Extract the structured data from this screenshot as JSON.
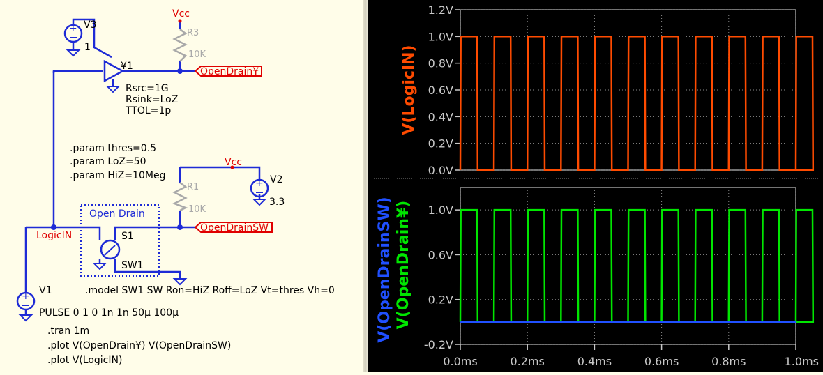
{
  "schematic": {
    "vcc_top": "Vcc",
    "vcc_mid": "Vcc",
    "v3": {
      "name": "V3",
      "value": "1"
    },
    "r3": {
      "name": "R3",
      "value": "10K"
    },
    "u1": {
      "name": "¥1",
      "params": [
        "Rsrc=1G",
        "Rsink=LoZ",
        "TTOL=1p"
      ]
    },
    "label_opendrain": "OpenDrain¥",
    "label_opendrainsw": "OpenDrainSW",
    "label_logicin": "LogicIN",
    "params": [
      ".param thres=0.5",
      ".param LoZ=50",
      ".param HiZ=10Meg"
    ],
    "r1": {
      "name": "R1",
      "value": "10K"
    },
    "v2": {
      "name": "V2",
      "value": "3.3"
    },
    "box_title": "Open Drain",
    "s1": {
      "name": "S1",
      "model": "SW1"
    },
    "model_line": ".model SW1 SW Ron=HiZ Roff=LoZ Vt=thres Vh=0",
    "v1": {
      "name": "V1",
      "value": "PULSE 0 1 0 1n 1n 50μ 100μ"
    },
    "directives": [
      ".tran 1m",
      ".plot V(OpenDrain¥) V(OpenDrainSW)",
      ".plot V(LogicIN)"
    ]
  },
  "colors": {
    "wire": "#1e2bd6",
    "net_label": "#e00000",
    "logicin_trace": "#ff4b00",
    "opendrain_trace": "#00e600",
    "opendrainsw_trace": "#2050ff"
  },
  "chart_data": [
    {
      "type": "line",
      "ylabel": "V(LogicIN)",
      "ylim": [
        0.0,
        1.2
      ],
      "yticks": [
        "1.2V",
        "1.0V",
        "0.8V",
        "0.6V",
        "0.4V",
        "0.2V",
        "0.0V"
      ],
      "xlim": [
        0.0,
        1.0
      ],
      "grid": true,
      "series": [
        {
          "name": "V(LogicIN)",
          "pulse": {
            "low": 0,
            "high": 1,
            "period_ms": 0.1,
            "width_ms": 0.05,
            "delay_ms": 0
          }
        }
      ]
    },
    {
      "type": "line",
      "ylabel": "V(OpenDrainSW) V(OpenDrain¥)",
      "ylabel_parts": [
        "V(OpenDrainSW)",
        "V(OpenDrain¥)"
      ],
      "ylim": [
        -0.2,
        1.2
      ],
      "yticks": [
        "1.0V",
        "0.6V",
        "0.2V",
        "-0.2V"
      ],
      "xlim": [
        0.0,
        1.0
      ],
      "xlabel_ticks": [
        "0.0ms",
        "0.2ms",
        "0.4ms",
        "0.6ms",
        "0.8ms",
        "1.0ms"
      ],
      "grid": true,
      "series": [
        {
          "name": "V(OpenDrain¥)",
          "pulse": {
            "low": 0,
            "high": 1,
            "period_ms": 0.1,
            "width_ms": 0.05,
            "delay_ms": 0
          }
        },
        {
          "name": "V(OpenDrainSW)",
          "constant": 0
        }
      ]
    }
  ]
}
